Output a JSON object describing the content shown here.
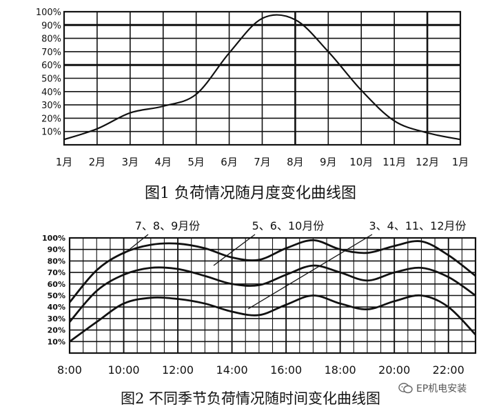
{
  "chart_data": [
    {
      "type": "line",
      "title": "图1  负荷情况随月度变化曲线图",
      "categories": [
        "1月",
        "2月",
        "3月",
        "4月",
        "5月",
        "6月",
        "7月",
        "8月",
        "9月",
        "10月",
        "11月",
        "12月",
        "1月"
      ],
      "y_tick_labels": [
        "10%",
        "20%",
        "30%",
        "40%",
        "50%",
        "60%",
        "70%",
        "80%",
        "90%",
        "100%"
      ],
      "ylim": [
        0,
        100
      ],
      "grid": true,
      "series": [
        {
          "values": [
            4,
            12,
            24,
            29,
            38,
            69,
            95,
            94,
            70,
            41,
            18,
            9,
            4
          ],
          "color": "#111111"
        }
      ]
    },
    {
      "type": "line",
      "title": "图2  不同季节负荷情况随时间变化曲线图",
      "x_tick_labels": [
        "8:00",
        "10:00",
        "12:00",
        "14:00",
        "16:00",
        "18:00",
        "20:00",
        "22:00"
      ],
      "y_tick_labels": [
        "10%",
        "20%",
        "30%",
        "40%",
        "50%",
        "60%",
        "70%",
        "80%",
        "90%",
        "100%"
      ],
      "ylim": [
        0,
        100
      ],
      "xlim": [
        8,
        23
      ],
      "grid": true,
      "series": [
        {
          "name": "7、8、9月份",
          "x": [
            8,
            9,
            10,
            11,
            12,
            13,
            14,
            15,
            16,
            17,
            18,
            19,
            20,
            21,
            22,
            23
          ],
          "values": [
            44,
            72,
            87,
            94,
            95,
            91,
            83,
            81,
            91,
            98,
            90,
            87,
            93,
            97,
            85,
            67
          ]
        },
        {
          "name": "5、6、10月份",
          "x": [
            8,
            9,
            10,
            11,
            12,
            13,
            14,
            15,
            16,
            17,
            18,
            19,
            20,
            21,
            22,
            23
          ],
          "values": [
            27,
            54,
            68,
            74,
            73,
            67,
            60,
            59,
            68,
            76,
            70,
            63,
            70,
            74,
            66,
            50
          ]
        },
        {
          "name": "3、4、11、12月份",
          "x": [
            8,
            9,
            10,
            11,
            12,
            13,
            14,
            15,
            16,
            17,
            18,
            19,
            20,
            21,
            22,
            23
          ],
          "values": [
            10,
            27,
            43,
            48,
            47,
            43,
            36,
            33,
            42,
            50,
            43,
            38,
            45,
            50,
            40,
            16
          ]
        }
      ]
    }
  ],
  "captions": {
    "fig1": "图1  负荷情况随月度变化曲线图",
    "fig2": "图2  不同季节负荷情况随时间变化曲线图"
  },
  "watermark": {
    "text": "EP机电安装",
    "icon": "wechat-icon"
  }
}
